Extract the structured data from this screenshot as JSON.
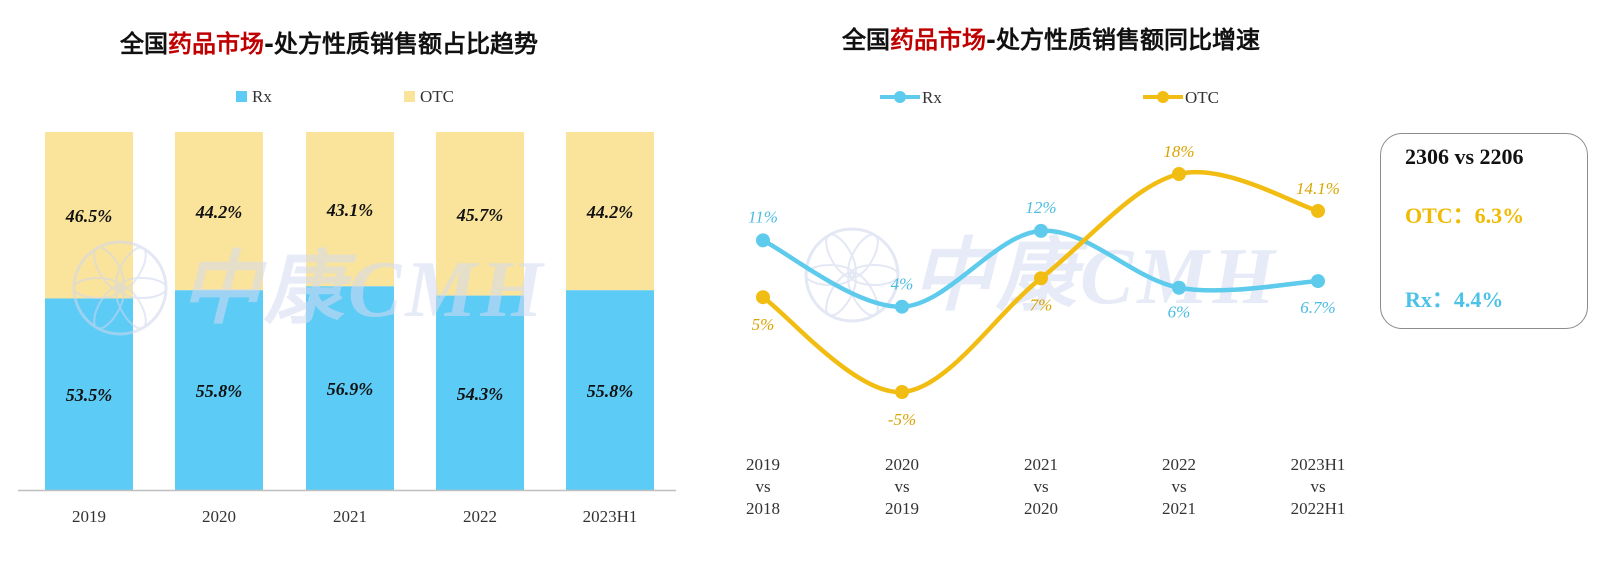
{
  "titles": {
    "left_prefix": "全国",
    "left_highlight": "药品市场",
    "left_suffix": "-处方性质销售额占比趋势",
    "right_prefix": "全国",
    "right_highlight": "药品市场",
    "right_suffix": "-处方性质销售额同比增速"
  },
  "colors": {
    "rx": "#5ccbf5",
    "otc": "#fae49b",
    "rx_line": "#5ecbed",
    "otc_line": "#f2bd12",
    "otc_label": "#d9a400",
    "rx_label": "#4bbce0",
    "highlight": "#c00000"
  },
  "watermark": "中康CMH",
  "callout": {
    "heading": "2306 vs 2206",
    "otc": "OTC：6.3%",
    "rx": "Rx：4.4%"
  },
  "chart_data": [
    {
      "type": "bar",
      "stacked": true,
      "percent_stacked": true,
      "categories": [
        "2019",
        "2020",
        "2021",
        "2022",
        "2023H1"
      ],
      "series": [
        {
          "name": "Rx",
          "values": [
            53.5,
            55.8,
            56.9,
            54.3,
            55.8
          ],
          "labels": [
            "53.5%",
            "55.8%",
            "56.9%",
            "54.3%",
            "55.8%"
          ]
        },
        {
          "name": "OTC",
          "values": [
            46.5,
            44.2,
            43.1,
            45.7,
            44.2
          ],
          "labels": [
            "46.5%",
            "44.2%",
            "43.1%",
            "45.7%",
            "44.2%"
          ]
        }
      ],
      "ylim": [
        0,
        100
      ],
      "legend": "top-center",
      "grid": false
    },
    {
      "type": "line",
      "smooth": true,
      "categories": [
        [
          "2019",
          "vs",
          "2018"
        ],
        [
          "2020",
          "vs",
          "2019"
        ],
        [
          "2021",
          "vs",
          "2020"
        ],
        [
          "2022",
          "vs",
          "2021"
        ],
        [
          "2023H1",
          "vs",
          "2022H1"
        ]
      ],
      "series": [
        {
          "name": "Rx",
          "values": [
            11,
            4,
            12,
            6,
            6.7
          ],
          "labels": [
            "11%",
            "4%",
            "12%",
            "6%",
            "6.7%"
          ]
        },
        {
          "name": "OTC",
          "values": [
            5,
            -5,
            7,
            18,
            14.1
          ],
          "labels": [
            "5%",
            "-5%",
            "7%",
            "18%",
            "14.1%"
          ]
        }
      ],
      "legend": "top-center",
      "grid": false
    }
  ]
}
